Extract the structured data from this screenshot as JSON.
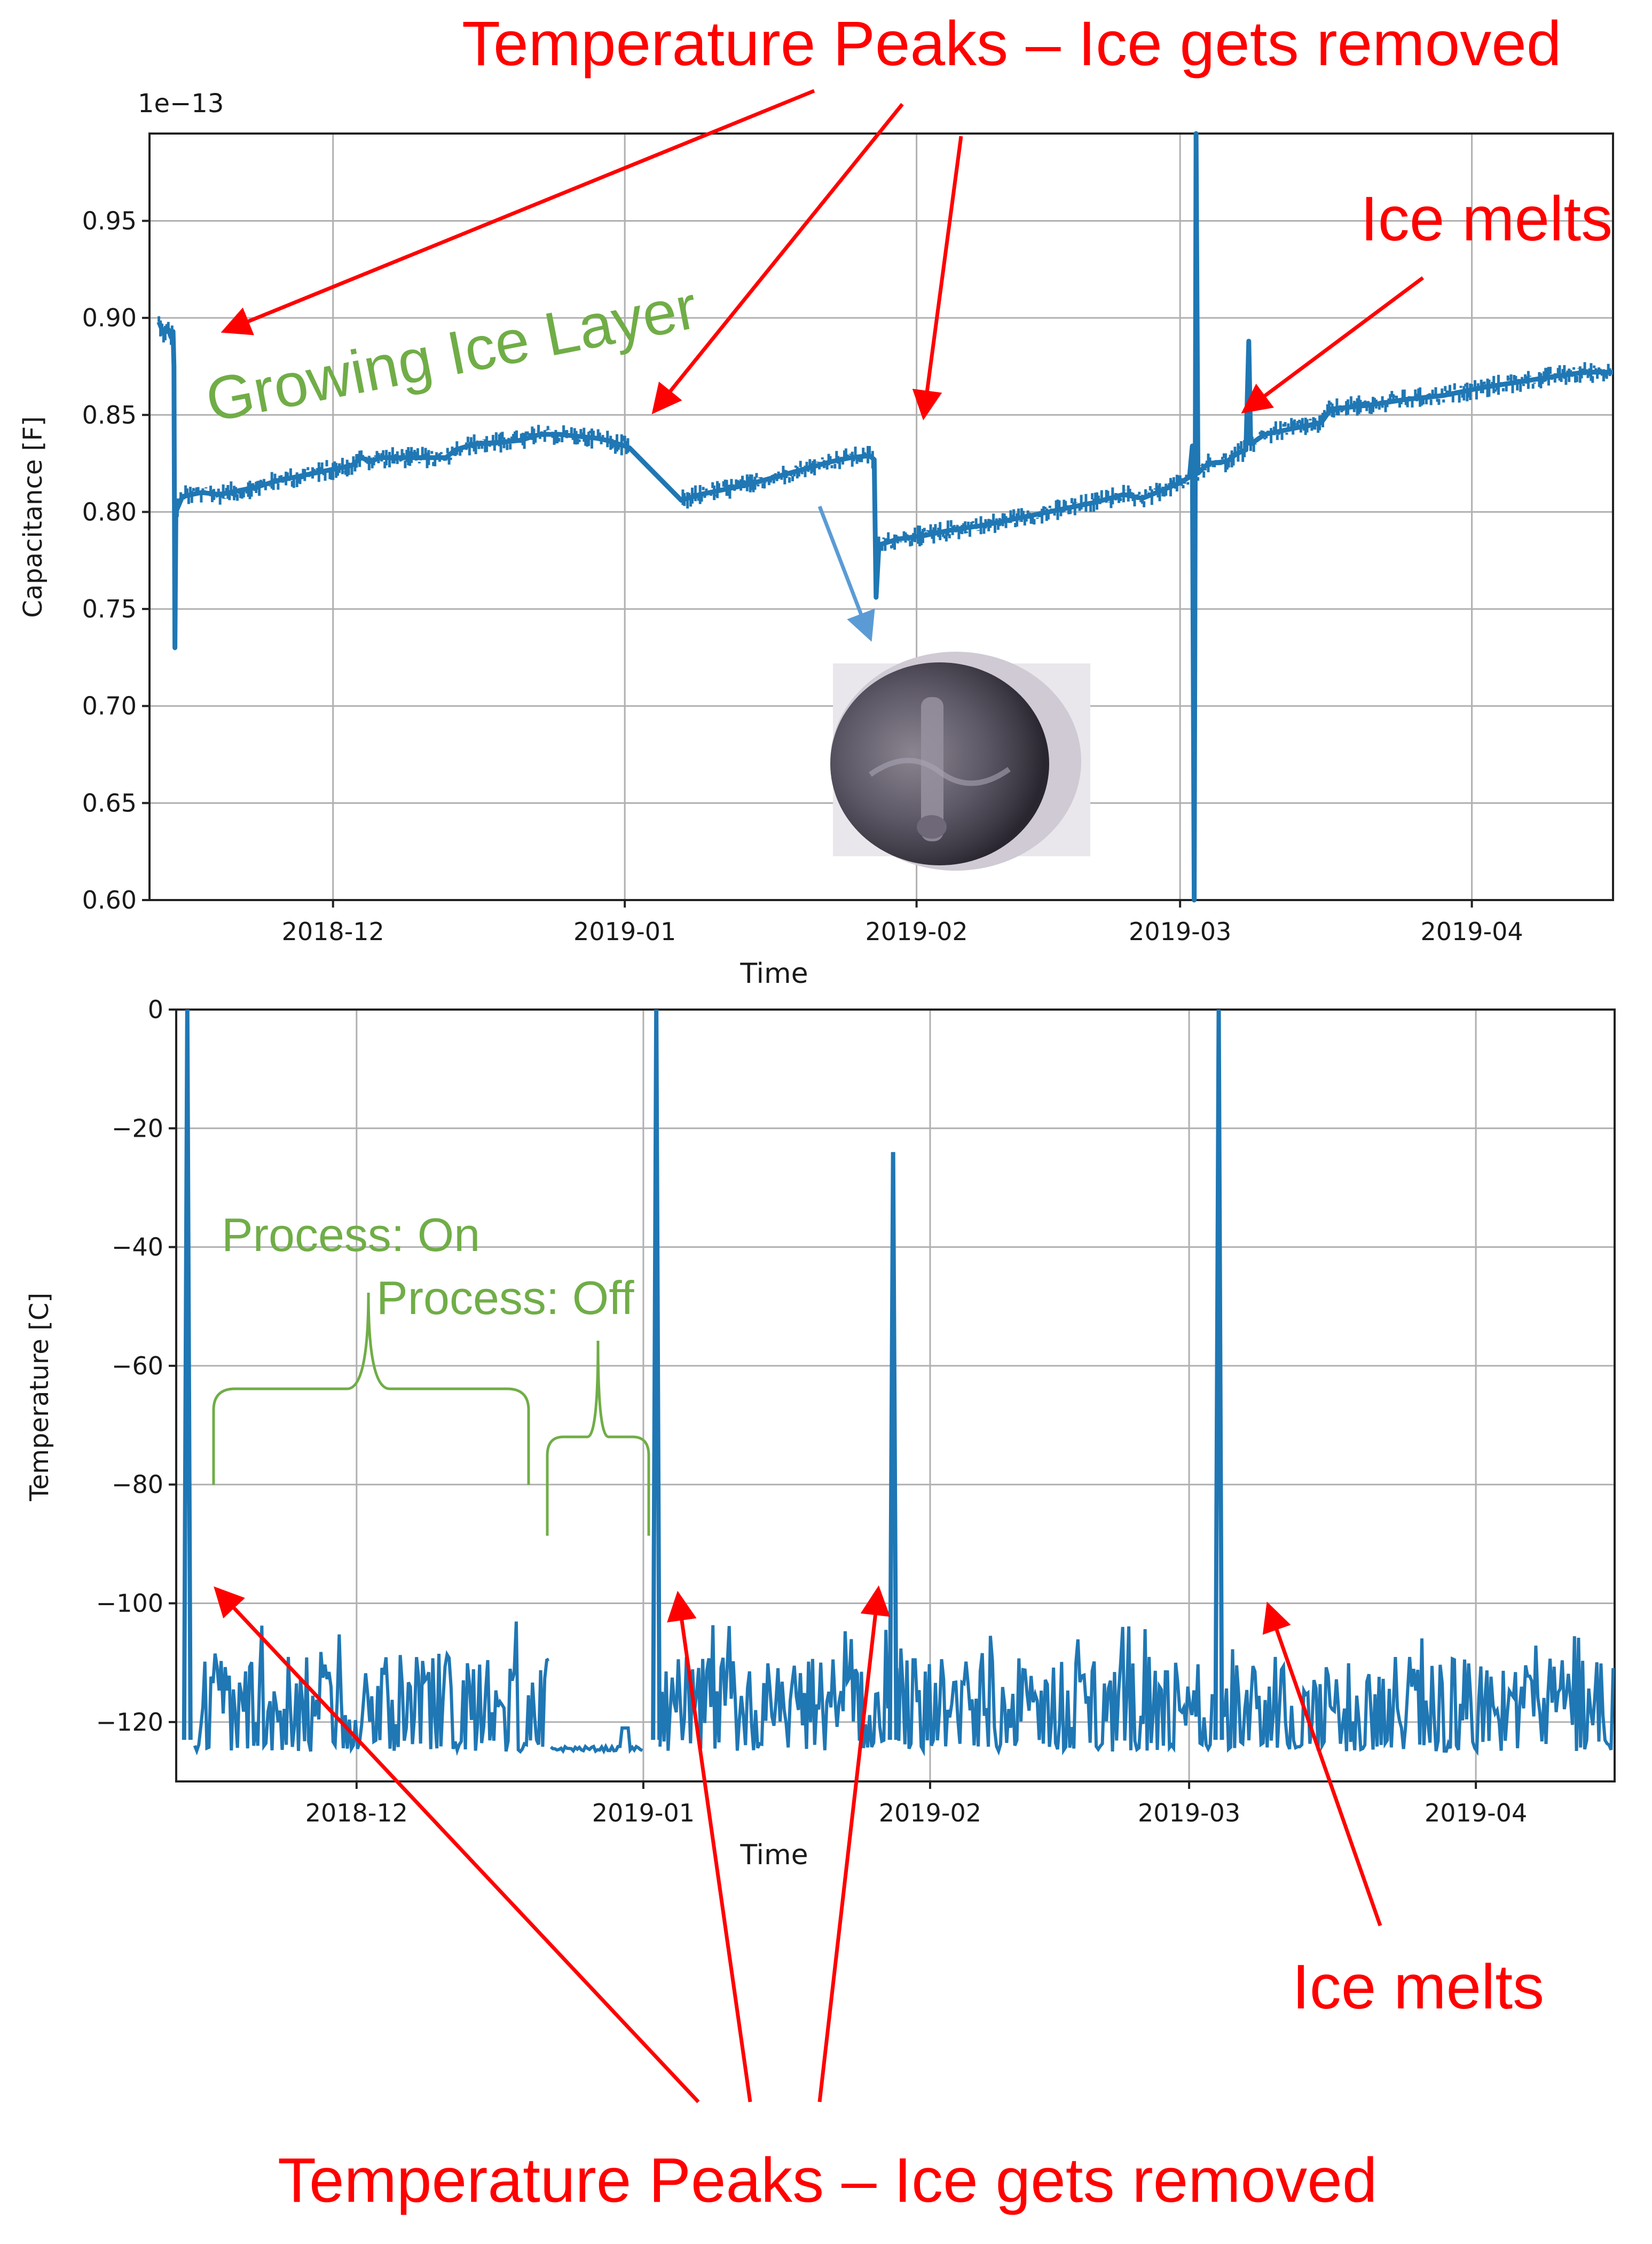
{
  "colors": {
    "series": "#1f77b4",
    "annotation_red": "#ff0000",
    "annotation_green": "#70ad47",
    "arrow_blue": "#5b9bd5",
    "grid": "#b0b0b0"
  },
  "annotations": {
    "top_header": "Temperature Peaks – Ice gets removed",
    "top_ice_melts": "Ice melts",
    "growing_ice": "Growing Ice Layer",
    "process_on": "Process: On",
    "process_off": "Process: Off",
    "bottom_ice_melts": "Ice melts",
    "bottom_footer": "Temperature Peaks – Ice gets removed"
  },
  "chart_data": [
    {
      "type": "line",
      "title": "",
      "xlabel": "Time",
      "ylabel": "Capacitance [F]",
      "offset_label": "1e−13",
      "x_ticks": [
        "2018-12",
        "2019-01",
        "2019-02",
        "2019-03",
        "2019-04"
      ],
      "y_ticks": [
        "0.60",
        "0.65",
        "0.70",
        "0.75",
        "0.80",
        "0.85",
        "0.90",
        "0.95"
      ],
      "ylim": [
        0.6,
        0.995
      ],
      "xlim_days": [
        -19.5,
        136
      ],
      "x_unit": "days since 2018-12-01",
      "grid": true,
      "series": [
        {
          "name": "Capacitance",
          "points": [
            [
              -18.5,
              0.898
            ],
            [
              -18,
              0.892
            ],
            [
              -17.5,
              0.894
            ],
            [
              -17.2,
              0.89
            ],
            [
              -17,
              0.893
            ],
            [
              -16.9,
              0.875
            ],
            [
              -16.8,
              0.73
            ],
            [
              -16.7,
              0.8
            ],
            [
              -16,
              0.808
            ],
            [
              -14,
              0.81
            ],
            [
              -12,
              0.809
            ],
            [
              -10,
              0.811
            ],
            [
              -8,
              0.813
            ],
            [
              -6,
              0.816
            ],
            [
              -4,
              0.818
            ],
            [
              -2,
              0.82
            ],
            [
              0,
              0.822
            ],
            [
              2,
              0.824
            ],
            [
              3,
              0.828
            ],
            [
              4,
              0.826
            ],
            [
              5,
              0.828
            ],
            [
              8,
              0.828
            ],
            [
              12,
              0.828
            ],
            [
              13,
              0.832
            ],
            [
              15,
              0.835
            ],
            [
              18,
              0.836
            ],
            [
              20,
              0.837
            ],
            [
              22,
              0.84
            ],
            [
              24,
              0.84
            ],
            [
              26,
              0.839
            ],
            [
              28,
              0.838
            ],
            [
              29,
              0.837
            ],
            [
              31,
              0.834
            ],
            [
              31.5,
              0.833
            ],
            [
              37,
              0.806
            ],
            [
              39,
              0.809
            ],
            [
              41,
              0.811
            ],
            [
              44,
              0.814
            ],
            [
              47,
              0.818
            ],
            [
              50,
              0.822
            ],
            [
              53,
              0.826
            ],
            [
              55,
              0.828
            ],
            [
              57,
              0.829
            ],
            [
              57.5,
              0.827
            ],
            [
              57.7,
              0.756
            ],
            [
              58,
              0.783
            ],
            [
              60,
              0.786
            ],
            [
              63,
              0.788
            ],
            [
              66,
              0.791
            ],
            [
              69,
              0.793
            ],
            [
              72,
              0.796
            ],
            [
              75,
              0.799
            ],
            [
              78,
              0.802
            ],
            [
              81,
              0.805
            ],
            [
              84,
              0.809
            ],
            [
              86,
              0.807
            ],
            [
              88,
              0.811
            ],
            [
              90,
              0.815
            ],
            [
              91,
              0.818
            ],
            [
              91.3,
              0.834
            ],
            [
              91.5,
              0.6
            ],
            [
              91.7,
              0.995
            ],
            [
              91.9,
              0.82
            ],
            [
              93,
              0.825
            ],
            [
              95,
              0.826
            ],
            [
              96,
              0.83
            ],
            [
              97,
              0.832
            ],
            [
              97.3,
              0.888
            ],
            [
              97.5,
              0.835
            ],
            [
              99,
              0.84
            ],
            [
              102,
              0.843
            ],
            [
              105,
              0.846
            ],
            [
              106,
              0.853
            ],
            [
              110,
              0.855
            ],
            [
              114,
              0.858
            ],
            [
              118,
              0.86
            ],
            [
              122,
              0.864
            ],
            [
              126,
              0.867
            ],
            [
              130,
              0.87
            ],
            [
              133,
              0.872
            ],
            [
              136,
              0.872
            ]
          ]
        }
      ]
    },
    {
      "type": "line",
      "title": "",
      "xlabel": "Time",
      "ylabel": "Temperature [C]",
      "x_ticks": [
        "2018-12",
        "2019-01",
        "2019-02",
        "2019-03",
        "2019-04"
      ],
      "y_ticks": [
        "0",
        "−20",
        "−40",
        "−60",
        "−80",
        "−100",
        "−120"
      ],
      "ylim": [
        -130,
        0
      ],
      "xlim_days": [
        -19.5,
        136
      ],
      "x_unit": "days since 2018-12-01",
      "grid": true,
      "series": [
        {
          "name": "Temperature",
          "baseline": -123,
          "peaks": [
            {
              "day": -18.3,
              "value": 0
            },
            {
              "day": 32.4,
              "value": 0
            },
            {
              "day": 58.0,
              "value": -24
            },
            {
              "day": 93.2,
              "value": 0
            }
          ],
          "segments": [
            {
              "from": -17.5,
              "to": 21,
              "mode": "active"
            },
            {
              "from": 21,
              "to": 31,
              "mode": "idle"
            },
            {
              "from": 32.8,
              "to": 57.6,
              "mode": "active"
            },
            {
              "from": 58.4,
              "to": 92.7,
              "mode": "active"
            },
            {
              "from": 93.6,
              "to": 136,
              "mode": "active"
            }
          ]
        }
      ]
    }
  ]
}
